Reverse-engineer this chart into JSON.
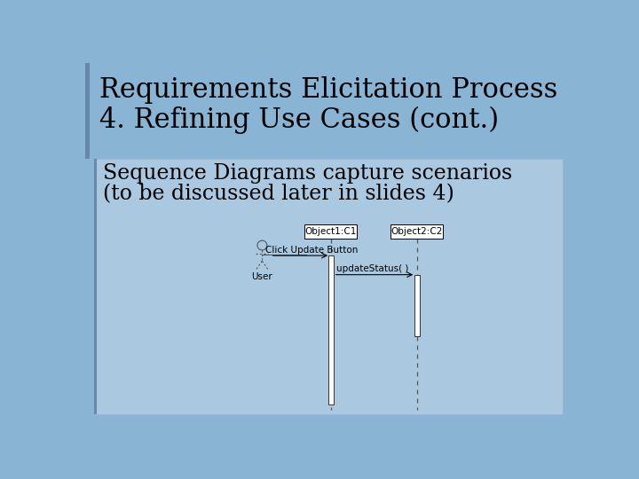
{
  "bg_color": "#8ab4d4",
  "title_line1": "Requirements Elicitation Process",
  "title_line2": "4. Refining Use Cases (cont.)",
  "subtitle_line1": "Sequence Diagrams capture scenarios",
  "subtitle_line2": "(to be discussed later in slides 4)",
  "title_color": "#000000",
  "subtitle_color": "#000000",
  "left_bar_color": "#6688aa",
  "inner_bg_color": "#aac8e0",
  "obj1_label": "Object1:C1",
  "obj2_label": "Object2:C2",
  "user_label": "User",
  "msg1_label": "Click Update Button",
  "msg2_label": "updateStatus( )",
  "box_fill": "#ffffff",
  "box_edge": "#000000",
  "lifeline_color": "#555555",
  "activation_fill": "#ffffff",
  "activation_edge": "#333333",
  "arrow_color": "#000000",
  "font_size_title": 22,
  "font_size_subtitle": 17,
  "font_size_diagram": 7.5
}
